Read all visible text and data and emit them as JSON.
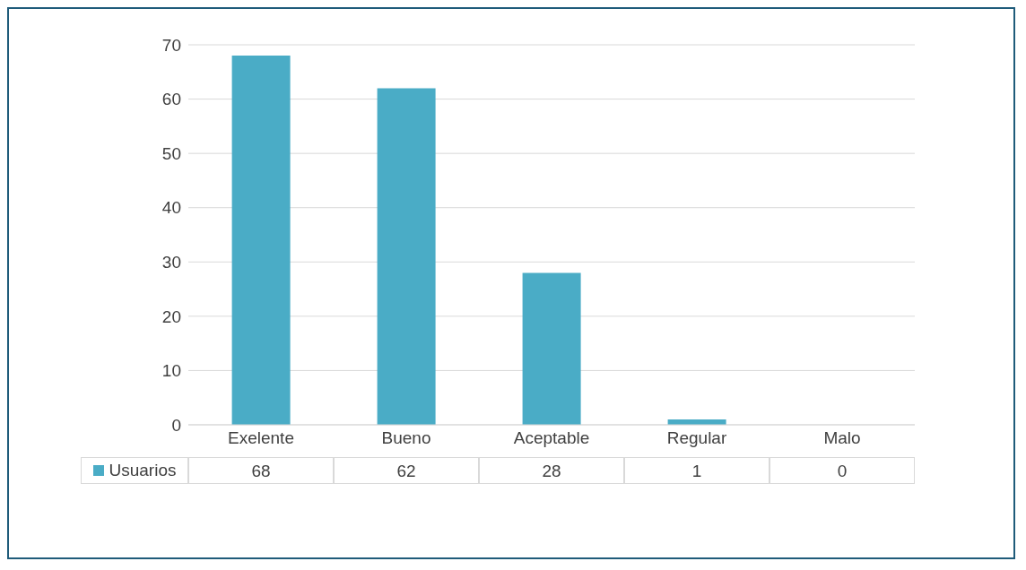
{
  "chart_data": {
    "type": "bar",
    "categories": [
      "Exelente",
      "Bueno",
      "Aceptable",
      "Regular",
      "Malo"
    ],
    "series": [
      {
        "name": "Usuarios",
        "color": "#4aacc6",
        "values": [
          68,
          62,
          28,
          1,
          0
        ]
      }
    ],
    "ylim": [
      0,
      70
    ],
    "yticks": [
      0,
      10,
      20,
      30,
      40,
      50,
      60,
      70
    ],
    "grid": "y",
    "legend": "bottom",
    "data_labels": true
  }
}
